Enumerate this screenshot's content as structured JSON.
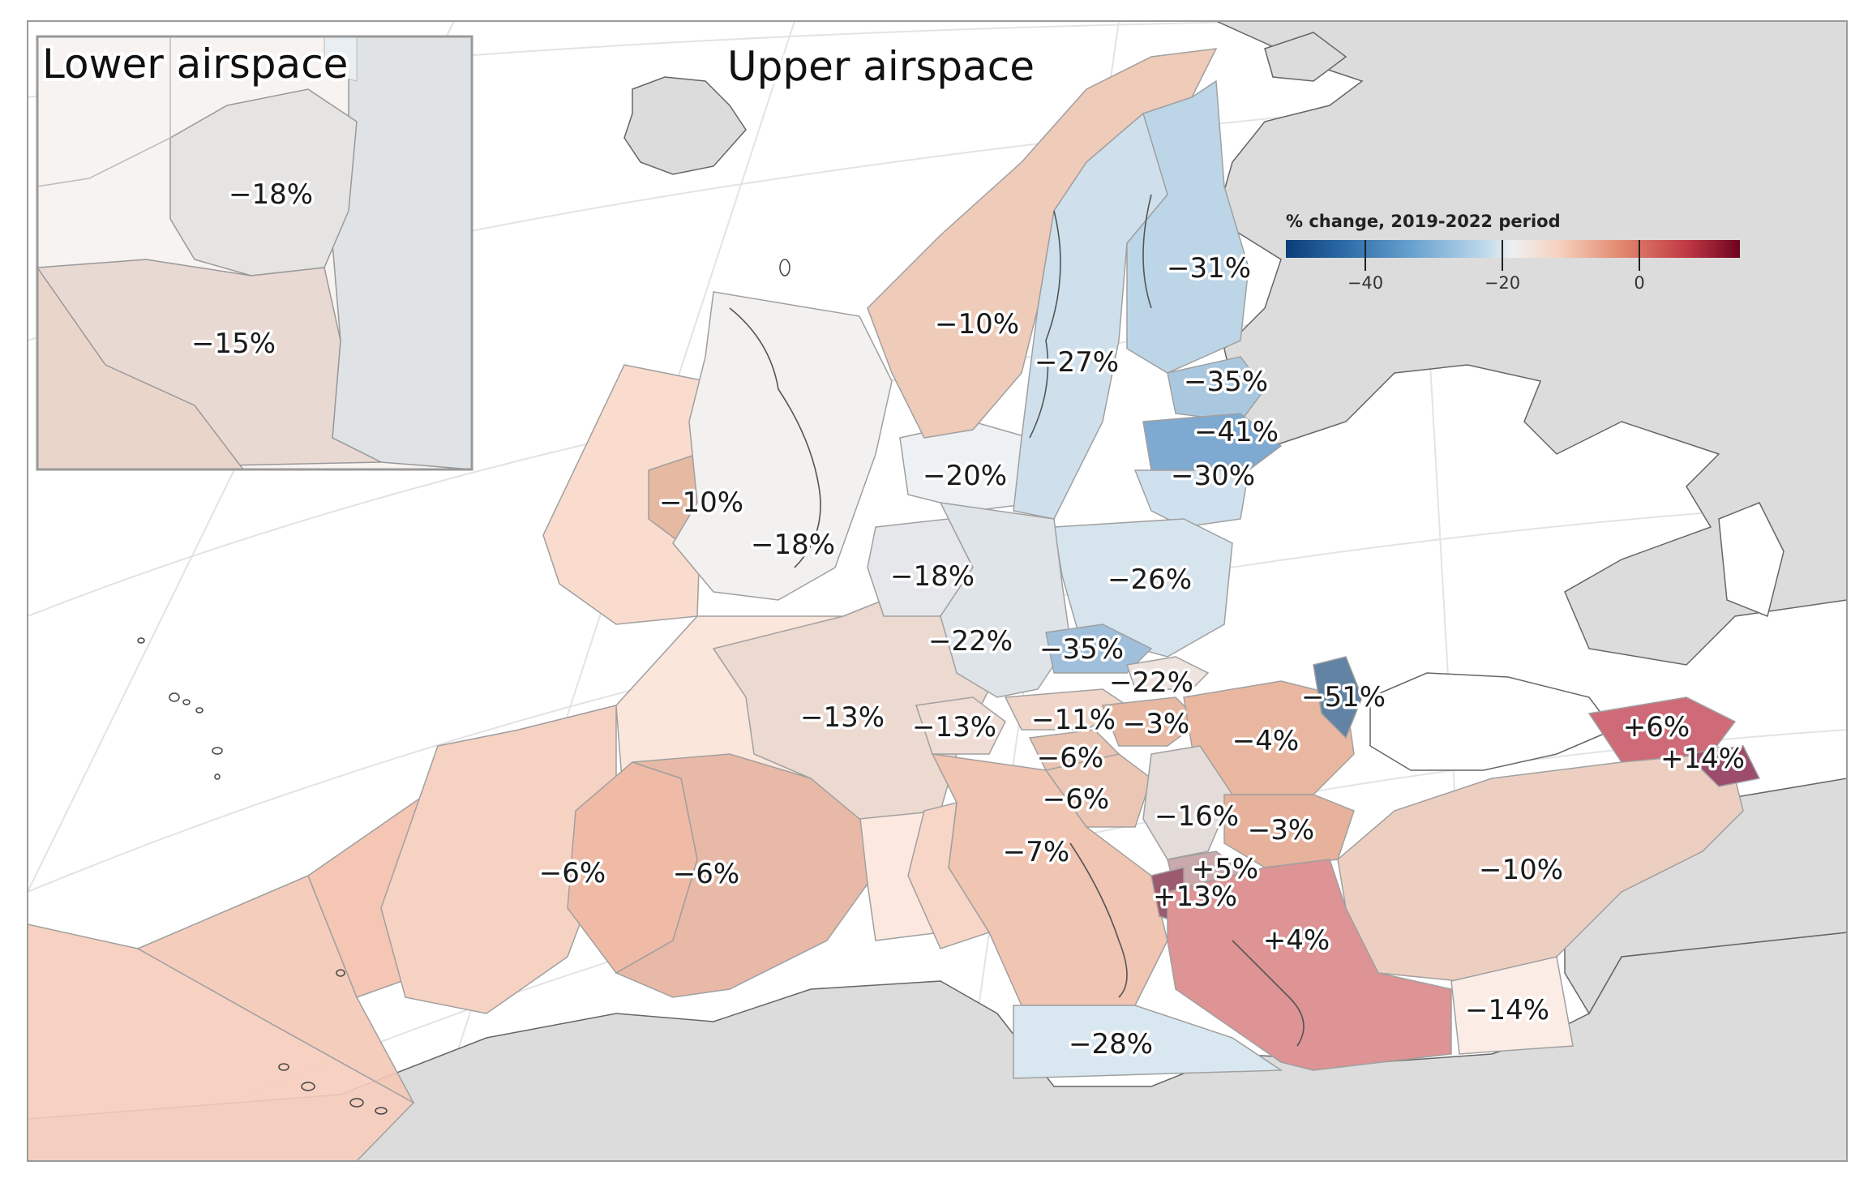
{
  "titles": {
    "inset": "Lower airspace",
    "main": "Upper airspace"
  },
  "colorbar": {
    "title": "% change, 2019-2022 period",
    "ticks": [
      "−40",
      "−20",
      "0"
    ],
    "colors": [
      "#0b3d78",
      "#2f6faa",
      "#6aa2cf",
      "#b9d6ea",
      "#eef0f1",
      "#f6d2bf",
      "#e2876f",
      "#c13b45",
      "#6d0320"
    ]
  },
  "legend_colors": {
    "neutral_land": "#dcdcdc",
    "sea": "#ffffff"
  },
  "inset": {
    "labels": [
      "−18%",
      "−15%"
    ]
  },
  "regions": {
    "norway": "−10%",
    "sweden": "−27%",
    "finland": "−31%",
    "estonia": "−35%",
    "latvia": "−41%",
    "lithuania": "−30%",
    "ireland": "−10%",
    "uk": "−18%",
    "denmark": "−20%",
    "benelux": "−18%",
    "poland": "−26%",
    "germany": "−22%",
    "czechia": "−35%",
    "slovakia": "−22%",
    "moldova": "−51%",
    "france": "−13%",
    "switzerland": "−13%",
    "austria": "−11%",
    "hungary": "−3%",
    "romania": "−4%",
    "slovenia": "−6%",
    "croatia": "−6%",
    "italy": "−7%",
    "serbia": "−16%",
    "bulgaria": "−3%",
    "north_macedonia": "+5%",
    "albania": "+13%",
    "greece": "+4%",
    "turkey": "−10%",
    "cyprus": "−14%",
    "georgia": "+6%",
    "armenia": "+14%",
    "portugal": "−6%",
    "spain": "−6%",
    "malta": "−28%"
  }
}
